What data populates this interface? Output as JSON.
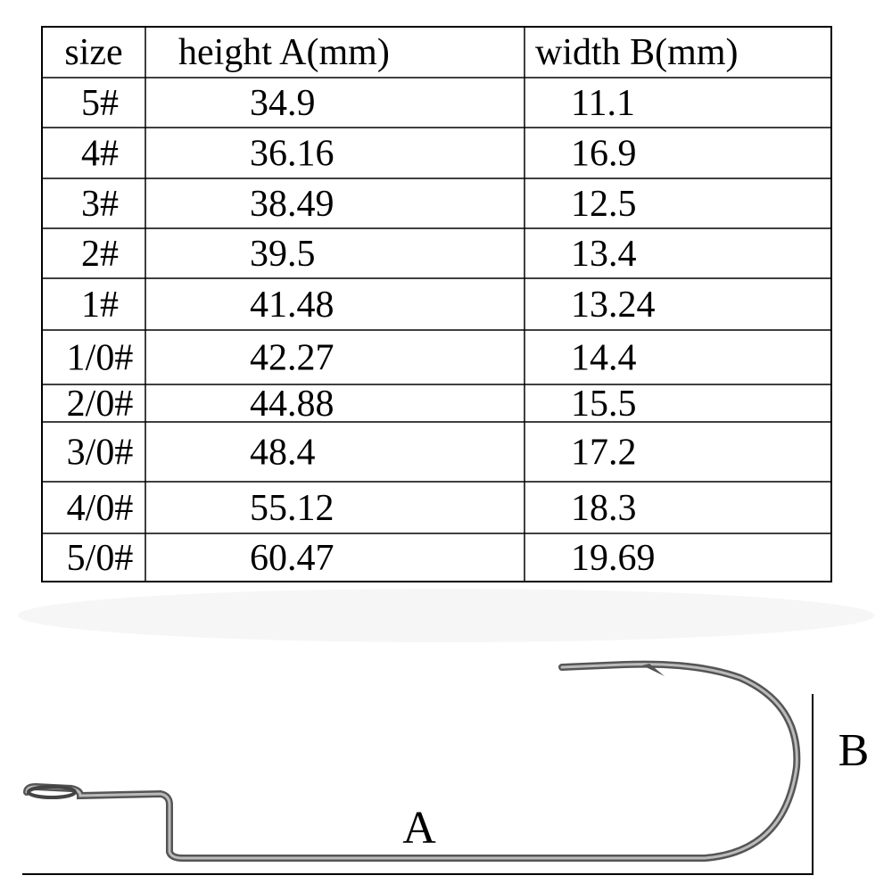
{
  "table": {
    "header": [
      "size",
      "height A(mm)",
      "width B(mm)"
    ],
    "rows": [
      [
        "5#",
        "34.9",
        "11.1"
      ],
      [
        "4#",
        "36.16",
        "16.9"
      ],
      [
        "3#",
        "38.49",
        "12.5"
      ],
      [
        "2#",
        "39.5",
        "13.4"
      ],
      [
        "1#",
        "41.48",
        "13.24"
      ],
      [
        "1/0#",
        "42.27",
        "14.4"
      ],
      [
        "2/0#",
        "44.88",
        "15.5"
      ],
      [
        "3/0#",
        "48.4",
        "17.2"
      ],
      [
        "4/0#",
        "55.12",
        "18.3"
      ],
      [
        "5/0#",
        "60.47",
        "19.69"
      ]
    ]
  },
  "diagram": {
    "label_a": "A",
    "label_b": "B"
  }
}
